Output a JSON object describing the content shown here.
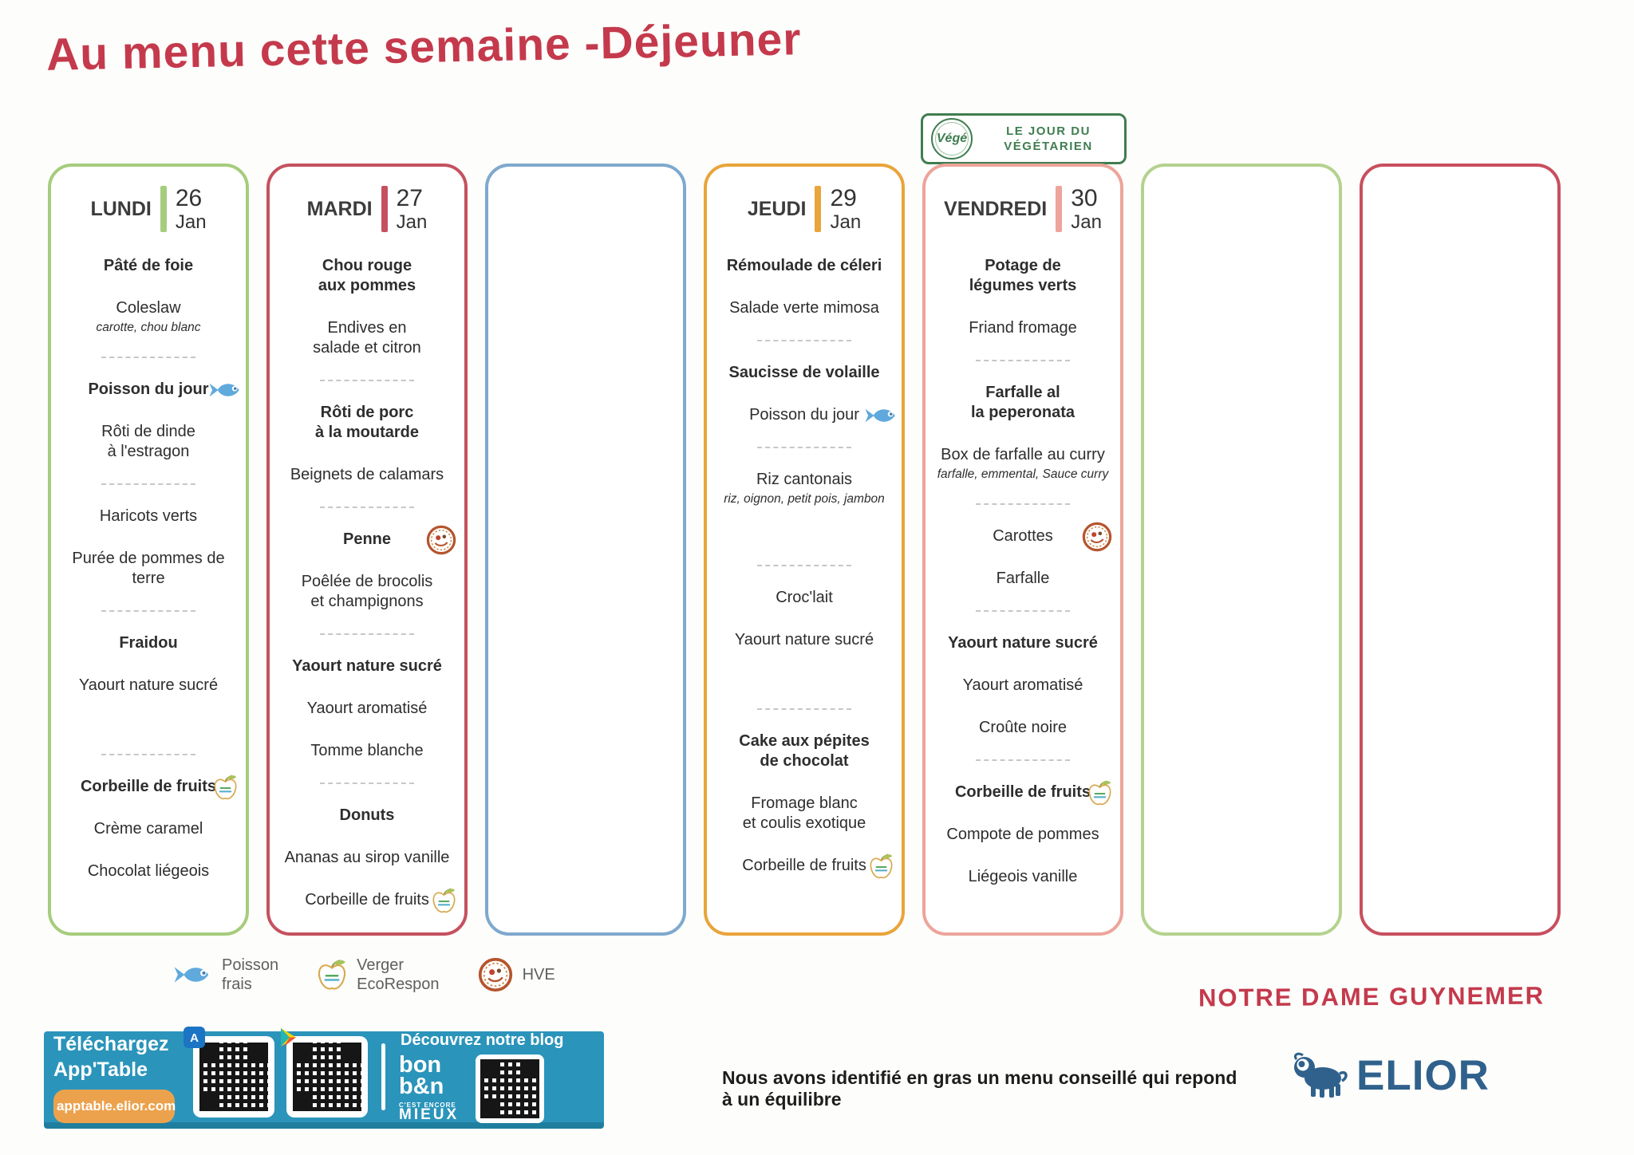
{
  "title": "Au menu cette semaine -Déjeuner",
  "title_color": "#c43a4c",
  "veg_badge": {
    "logo_text": "Végé",
    "label_line1": "LE JOUR DU",
    "label_line2": "VÉGÉTARIEN",
    "color": "#3f7d4f"
  },
  "week": {
    "columns": [
      {
        "day": "LUNDI",
        "date_day": "26",
        "date_month": "Jan",
        "accent": "#a6cc7d",
        "items": [
          {
            "text": "Pâté de foie",
            "bold": true
          },
          {
            "text": "Coleslaw",
            "sub": "carotte, chou blanc"
          },
          {
            "divider": true
          },
          {
            "text": "Poisson du jour",
            "bold": true,
            "icon": "fish"
          },
          {
            "text": "Rôti de dinde\nà l'estragon"
          },
          {
            "divider": true
          },
          {
            "text": "Haricots verts"
          },
          {
            "text": "Purée de pommes de\nterre"
          },
          {
            "divider": true
          },
          {
            "text": "Fraidou",
            "bold": true
          },
          {
            "text": "Yaourt nature sucré"
          },
          {
            "spacer": true
          },
          {
            "divider": true
          },
          {
            "text": "Corbeille de fruits",
            "bold": true,
            "icon": "apple"
          },
          {
            "text": "Crème caramel"
          },
          {
            "text": "Chocolat liégeois"
          }
        ]
      },
      {
        "day": "MARDI",
        "date_day": "27",
        "date_month": "Jan",
        "accent": "#c5515f",
        "items": [
          {
            "text": "Chou rouge\naux pommes",
            "bold": true
          },
          {
            "text": "Endives en\nsalade et citron"
          },
          {
            "divider": true
          },
          {
            "text": "Rôti de porc\nà la moutarde",
            "bold": true
          },
          {
            "text": "Beignets de calamars"
          },
          {
            "divider": true
          },
          {
            "text": "Penne",
            "bold": true,
            "icon": "hve"
          },
          {
            "text": "Poêlée de brocolis\net champignons"
          },
          {
            "divider": true
          },
          {
            "text": "Yaourt nature sucré",
            "bold": true
          },
          {
            "text": "Yaourt aromatisé"
          },
          {
            "text": "Tomme blanche"
          },
          {
            "divider": true
          },
          {
            "text": "Donuts",
            "bold": true
          },
          {
            "text": "Ananas au sirop vanille"
          },
          {
            "text": "Corbeille de fruits",
            "icon": "apple"
          }
        ]
      },
      {
        "day": "",
        "date_day": "",
        "date_month": "",
        "accent": "#7fa9ce",
        "items": []
      },
      {
        "day": "JEUDI",
        "date_day": "29",
        "date_month": "Jan",
        "accent": "#e9a43b",
        "items": [
          {
            "text": "Rémoulade de céleri",
            "bold": true
          },
          {
            "text": "Salade verte mimosa"
          },
          {
            "divider": true
          },
          {
            "text": "Saucisse de volaille",
            "bold": true
          },
          {
            "text": "Poisson du jour",
            "icon": "fish"
          },
          {
            "divider": true
          },
          {
            "text": "Riz cantonais",
            "sub": "riz, oignon, petit pois, jambon"
          },
          {
            "spacer": true
          },
          {
            "divider": true
          },
          {
            "text": "Croc'lait"
          },
          {
            "text": "Yaourt nature sucré"
          },
          {
            "spacer": true
          },
          {
            "divider": true
          },
          {
            "text": "Cake aux pépites\nde chocolat",
            "bold": true
          },
          {
            "text": "Fromage blanc\net coulis exotique"
          },
          {
            "text": "Corbeille de fruits",
            "icon": "apple"
          }
        ]
      },
      {
        "day": "VENDREDI",
        "date_day": "30",
        "date_month": "Jan",
        "accent": "#eda49b",
        "items": [
          {
            "text": "Potage de\nlégumes verts",
            "bold": true
          },
          {
            "text": "Friand fromage"
          },
          {
            "divider": true
          },
          {
            "text": "Farfalle al\nla peperonata",
            "bold": true
          },
          {
            "text": "Box de farfalle au curry",
            "sub": "farfalle, emmental, Sauce curry"
          },
          {
            "divider": true
          },
          {
            "text": "Carottes",
            "icon": "hve"
          },
          {
            "text": "Farfalle"
          },
          {
            "divider": true
          },
          {
            "text": "Yaourt nature sucré",
            "bold": true
          },
          {
            "text": "Yaourt aromatisé"
          },
          {
            "text": "Croûte noire"
          },
          {
            "divider": true
          },
          {
            "text": "Corbeille de fruits",
            "bold": true,
            "icon": "apple"
          },
          {
            "text": "Compote de pommes"
          },
          {
            "text": "Liégeois vanille"
          }
        ]
      },
      {
        "day": "",
        "date_day": "",
        "date_month": "",
        "accent": "#b4d28e",
        "items": []
      },
      {
        "day": "",
        "date_day": "",
        "date_month": "",
        "accent": "#c84f5e",
        "items": []
      }
    ]
  },
  "legend": {
    "entries": [
      {
        "icon": "fish",
        "label": "Poisson\nfrais"
      },
      {
        "icon": "apple",
        "label": "Verger\nEcoRespon"
      },
      {
        "icon": "hve",
        "label": "HVE"
      }
    ]
  },
  "school_name": "NOTRE DAME GUYNEMER",
  "footer_note": "Nous avons identifié en gras un menu conseillé qui repond à un équilibre",
  "app_banner": {
    "bg_color": "#2b94ba",
    "download_line1": "Téléchargez",
    "download_line2": "App'Table",
    "url_pill": "apptable.elior.com",
    "blog_label": "Découvrez notre blog",
    "blog_logo": {
      "line1": "bon",
      "line2": "b&n",
      "line3": "C'EST ENCORE",
      "line4": "MIEUX"
    }
  },
  "brand": {
    "name": "ELIOR",
    "color": "#2f618c"
  }
}
